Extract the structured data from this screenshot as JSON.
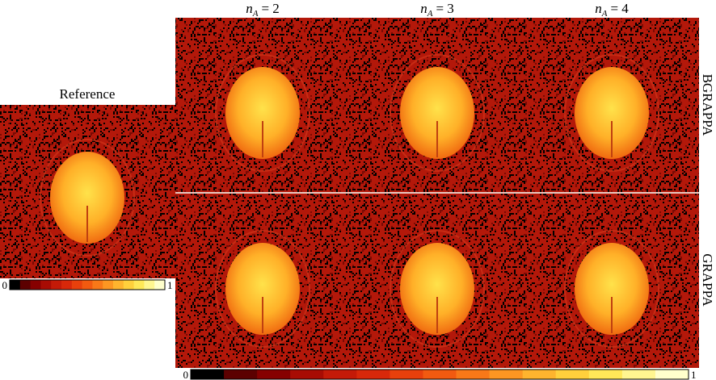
{
  "reference": {
    "title": "Reference",
    "colorbar_ticks": [
      0,
      1
    ]
  },
  "columns": [
    {
      "symbol": "n",
      "subscript": "A",
      "relation": "= 2"
    },
    {
      "symbol": "n",
      "subscript": "A",
      "relation": "= 3"
    },
    {
      "symbol": "n",
      "subscript": "A",
      "relation": "= 4"
    }
  ],
  "rows": [
    "BGRAPPA",
    "GRAPPA"
  ],
  "colorbar_ticks": [
    0,
    1
  ]
}
